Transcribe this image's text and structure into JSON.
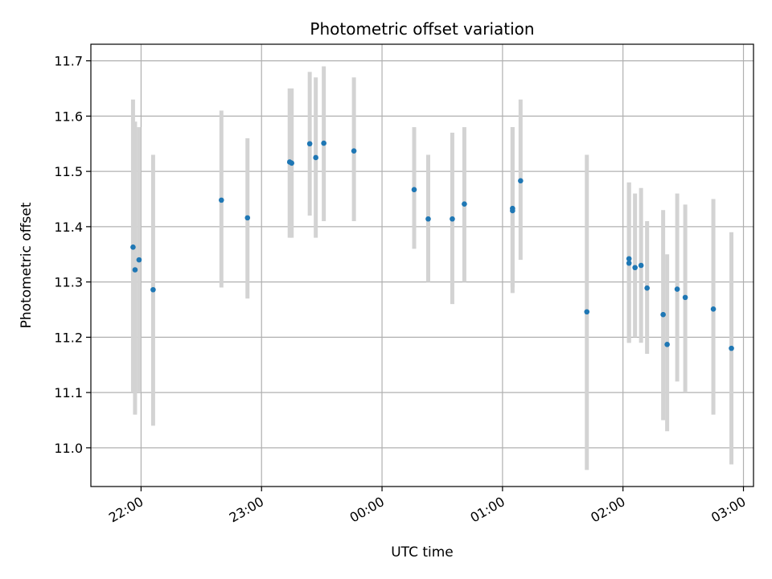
{
  "chart_data": {
    "type": "scatter",
    "title": "Photometric offset variation",
    "xlabel": "UTC time",
    "ylabel": "Photometric offset",
    "x_unit": "UTC time (HH:MM, 21:30 to 03:10)",
    "xlim": [
      "21:35",
      "03:05"
    ],
    "ylim": [
      10.93,
      11.73
    ],
    "xticks": [
      "22:00",
      "23:00",
      "00:00",
      "01:00",
      "02:00",
      "03:00"
    ],
    "yticks": [
      "11.0",
      "11.1",
      "11.2",
      "11.3",
      "11.4",
      "11.5",
      "11.6",
      "11.7"
    ],
    "grid": true,
    "colors": {
      "point": "#1f77b4",
      "errorbar": "#d3d3d3",
      "grid": "#b0b0b0"
    },
    "points": [
      {
        "x": "21:56",
        "y": 11.363,
        "ylo": 11.1,
        "yhi": 11.63
      },
      {
        "x": "21:57",
        "y": 11.322,
        "ylo": 11.06,
        "yhi": 11.59
      },
      {
        "x": "21:59",
        "y": 11.34,
        "ylo": 11.1,
        "yhi": 11.58
      },
      {
        "x": "22:06",
        "y": 11.286,
        "ylo": 11.04,
        "yhi": 11.53
      },
      {
        "x": "22:40",
        "y": 11.448,
        "ylo": 11.29,
        "yhi": 11.61
      },
      {
        "x": "22:53",
        "y": 11.416,
        "ylo": 11.27,
        "yhi": 11.56
      },
      {
        "x": "23:14",
        "y": 11.517,
        "ylo": 11.38,
        "yhi": 11.65
      },
      {
        "x": "23:15",
        "y": 11.515,
        "ylo": 11.38,
        "yhi": 11.65
      },
      {
        "x": "23:24",
        "y": 11.55,
        "ylo": 11.42,
        "yhi": 11.68
      },
      {
        "x": "23:27",
        "y": 11.525,
        "ylo": 11.38,
        "yhi": 11.67
      },
      {
        "x": "23:31",
        "y": 11.551,
        "ylo": 11.41,
        "yhi": 11.69
      },
      {
        "x": "23:46",
        "y": 11.537,
        "ylo": 11.41,
        "yhi": 11.67
      },
      {
        "x": "00:16",
        "y": 11.467,
        "ylo": 11.36,
        "yhi": 11.58
      },
      {
        "x": "00:23",
        "y": 11.414,
        "ylo": 11.3,
        "yhi": 11.53
      },
      {
        "x": "00:35",
        "y": 11.414,
        "ylo": 11.26,
        "yhi": 11.57
      },
      {
        "x": "00:41",
        "y": 11.441,
        "ylo": 11.3,
        "yhi": 11.58
      },
      {
        "x": "01:05",
        "y": 11.433,
        "ylo": 11.29,
        "yhi": 11.58
      },
      {
        "x": "01:05",
        "y": 11.429,
        "ylo": 11.28,
        "yhi": 11.58
      },
      {
        "x": "01:09",
        "y": 11.483,
        "ylo": 11.34,
        "yhi": 11.63
      },
      {
        "x": "01:42",
        "y": 11.246,
        "ylo": 10.96,
        "yhi": 11.53
      },
      {
        "x": "02:03",
        "y": 11.334,
        "ylo": 11.19,
        "yhi": 11.48
      },
      {
        "x": "02:03",
        "y": 11.342,
        "ylo": 11.19,
        "yhi": 11.48
      },
      {
        "x": "02:06",
        "y": 11.326,
        "ylo": 11.2,
        "yhi": 11.46
      },
      {
        "x": "02:09",
        "y": 11.33,
        "ylo": 11.19,
        "yhi": 11.47
      },
      {
        "x": "02:12",
        "y": 11.289,
        "ylo": 11.17,
        "yhi": 11.41
      },
      {
        "x": "02:20",
        "y": 11.241,
        "ylo": 11.05,
        "yhi": 11.43
      },
      {
        "x": "02:22",
        "y": 11.187,
        "ylo": 11.03,
        "yhi": 11.35
      },
      {
        "x": "02:27",
        "y": 11.287,
        "ylo": 11.12,
        "yhi": 11.46
      },
      {
        "x": "02:31",
        "y": 11.272,
        "ylo": 11.1,
        "yhi": 11.44
      },
      {
        "x": "02:45",
        "y": 11.251,
        "ylo": 11.06,
        "yhi": 11.45
      },
      {
        "x": "02:54",
        "y": 11.18,
        "ylo": 10.97,
        "yhi": 11.39
      }
    ]
  }
}
